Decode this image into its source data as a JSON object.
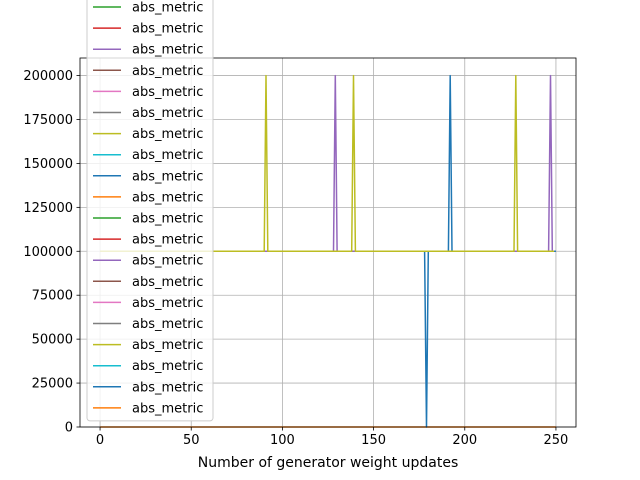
{
  "chart_data": {
    "type": "line",
    "title": "",
    "xlabel": "Number of generator weight updates",
    "ylabel": "",
    "xlim": [
      -11,
      261
    ],
    "ylim": [
      0,
      210000
    ],
    "xticks": [
      0,
      50,
      100,
      150,
      200,
      250
    ],
    "yticks": [
      0,
      25000,
      50000,
      75000,
      100000,
      125000,
      150000,
      175000,
      200000
    ],
    "grid": true,
    "legend_position": "top-left",
    "legend_entries": [
      {
        "label": "abs_metric",
        "color": "#2ca02c"
      },
      {
        "label": "abs_metric",
        "color": "#d62728"
      },
      {
        "label": "abs_metric",
        "color": "#9467bd"
      },
      {
        "label": "abs_metric",
        "color": "#8c564b"
      },
      {
        "label": "abs_metric",
        "color": "#e377c2"
      },
      {
        "label": "abs_metric",
        "color": "#7f7f7f"
      },
      {
        "label": "abs_metric",
        "color": "#bcbd22"
      },
      {
        "label": "abs_metric",
        "color": "#17becf"
      },
      {
        "label": "abs_metric",
        "color": "#1f77b4"
      },
      {
        "label": "abs_metric",
        "color": "#ff7f0e"
      },
      {
        "label": "abs_metric",
        "color": "#2ca02c"
      },
      {
        "label": "abs_metric",
        "color": "#d62728"
      },
      {
        "label": "abs_metric",
        "color": "#9467bd"
      },
      {
        "label": "abs_metric",
        "color": "#8c564b"
      },
      {
        "label": "abs_metric",
        "color": "#e377c2"
      },
      {
        "label": "abs_metric",
        "color": "#7f7f7f"
      },
      {
        "label": "abs_metric",
        "color": "#bcbd22"
      },
      {
        "label": "abs_metric",
        "color": "#17becf"
      },
      {
        "label": "abs_metric",
        "color": "#1f77b4"
      },
      {
        "label": "abs_metric",
        "color": "#ff7f0e"
      }
    ],
    "series": [
      {
        "color": "#ff7f0e",
        "x": [
          0,
          250
        ],
        "y": [
          0,
          0
        ]
      },
      {
        "color": "#1f77b4",
        "x": [
          0,
          178,
          179,
          180,
          191,
          192,
          193,
          250
        ],
        "y": [
          100000,
          100000,
          0,
          100000,
          100000,
          200000,
          100000,
          100000
        ]
      },
      {
        "color": "#9467bd",
        "x": [
          0,
          128,
          129,
          130,
          246,
          247,
          248,
          249
        ],
        "y": [
          100000,
          100000,
          200000,
          100000,
          100000,
          200000,
          100000,
          100000
        ]
      },
      {
        "color": "#bcbd22",
        "x": [
          0,
          90,
          91,
          92,
          138,
          139,
          140,
          227,
          228,
          229,
          249
        ],
        "y": [
          100000,
          100000,
          200000,
          100000,
          100000,
          200000,
          100000,
          100000,
          200000,
          100000,
          100000
        ]
      }
    ]
  }
}
